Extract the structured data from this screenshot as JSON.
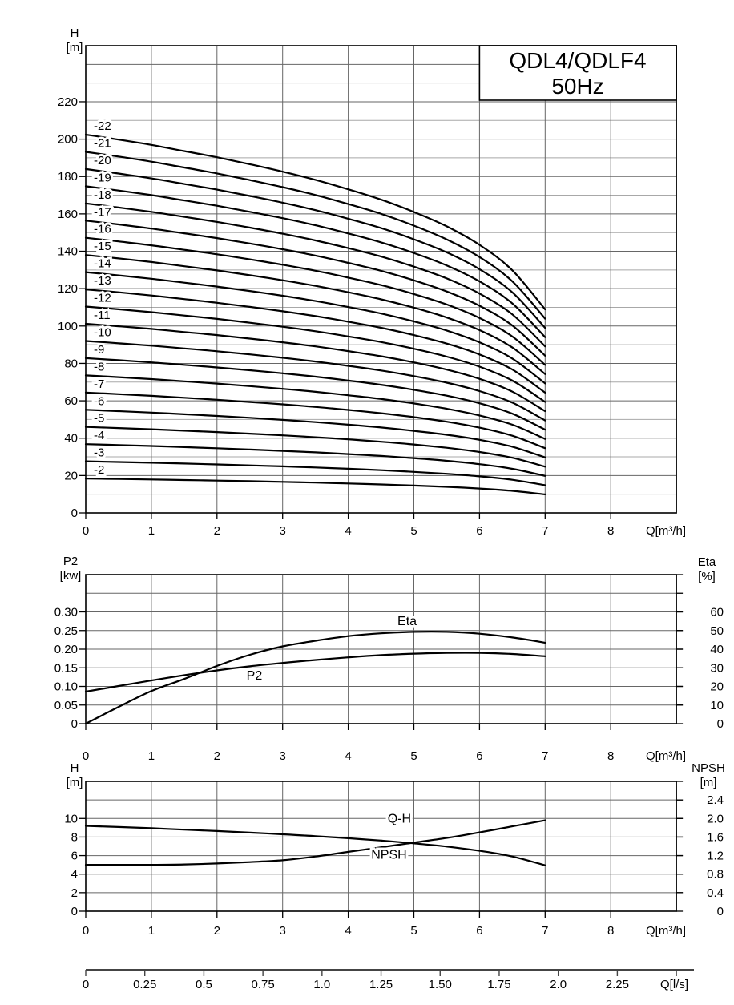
{
  "title": {
    "line1": "QDL4/QDLF4",
    "line2": "50Hz"
  },
  "labels": {
    "chart1_yname": "H",
    "chart1_yunit": "[m]",
    "chart1_xlabel": "Q[m³/h]",
    "chart2_lname": "P2",
    "chart2_lunit": "[kw]",
    "chart2_rname": "Eta",
    "chart2_runit": "[%]",
    "chart2_xlabel": "Q[m³/h]",
    "chart3_lname": "H",
    "chart3_lunit": "[m]",
    "chart3_rname": "NPSH",
    "chart3_runit": "[m]",
    "chart3_xlabel": "Q[m³/h]",
    "flow_axis_label": "Q[l/s]"
  },
  "colors": {
    "curve": "#000000",
    "frame": "#000000",
    "grid_major": "#666666",
    "grid_minor": "#a8a8a8",
    "flow_axis": "#444444",
    "background": "#ffffff"
  },
  "chart_data": [
    {
      "type": "line",
      "name": "head-curves",
      "title": "QDL4/QDLF4 50Hz",
      "xlabel": "Q[m³/h]",
      "ylabel": "H [m]",
      "xlim": [
        0,
        9
      ],
      "ylim": [
        0,
        250
      ],
      "grid": true,
      "x_tick_values": [
        0,
        1,
        2,
        3,
        4,
        5,
        6,
        7,
        8
      ],
      "x_tick_labels": [
        "0",
        "1",
        "2",
        "3",
        "4",
        "5",
        "6",
        "7",
        "8"
      ],
      "y_tick_values": [
        0,
        20,
        40,
        60,
        80,
        100,
        120,
        140,
        160,
        180,
        200,
        220
      ],
      "y_tick_labels": [
        "0",
        "20",
        "40",
        "60",
        "80",
        "100",
        "120",
        "140",
        "160",
        "180",
        "200",
        "220"
      ],
      "y_grid_step": 10,
      "x": [
        0,
        0.5,
        1,
        1.5,
        2,
        2.5,
        3,
        3.5,
        4,
        4.5,
        5,
        5.5,
        6,
        6.5,
        7
      ],
      "base_h_per_stage": [
        9.2,
        9.08,
        8.95,
        8.8,
        8.65,
        8.48,
        8.3,
        8.1,
        7.87,
        7.62,
        7.32,
        6.97,
        6.52,
        5.9,
        4.95
      ],
      "series_rule": "H(Q) = stage x base_h_per_stage(Q)",
      "series": [
        {
          "name": "-2",
          "stage": 2
        },
        {
          "name": "-3",
          "stage": 3
        },
        {
          "name": "-4",
          "stage": 4
        },
        {
          "name": "-5",
          "stage": 5
        },
        {
          "name": "-6",
          "stage": 6
        },
        {
          "name": "-7",
          "stage": 7
        },
        {
          "name": "-8",
          "stage": 8
        },
        {
          "name": "-9",
          "stage": 9
        },
        {
          "name": "-10",
          "stage": 10
        },
        {
          "name": "-11",
          "stage": 11
        },
        {
          "name": "-12",
          "stage": 12
        },
        {
          "name": "-13",
          "stage": 13
        },
        {
          "name": "-14",
          "stage": 14
        },
        {
          "name": "-15",
          "stage": 15
        },
        {
          "name": "-16",
          "stage": 16
        },
        {
          "name": "-17",
          "stage": 17
        },
        {
          "name": "-18",
          "stage": 18
        },
        {
          "name": "-19",
          "stage": 19
        },
        {
          "name": "-20",
          "stage": 20
        },
        {
          "name": "-21",
          "stage": 21
        },
        {
          "name": "-22",
          "stage": 22
        }
      ]
    },
    {
      "type": "line",
      "name": "power-efficiency",
      "xlabel": "Q[m³/h]",
      "xlim": [
        0,
        9
      ],
      "x_tick_values": [
        0,
        1,
        2,
        3,
        4,
        5,
        6,
        7,
        8
      ],
      "x_tick_labels": [
        "0",
        "1",
        "2",
        "3",
        "4",
        "5",
        "6",
        "7",
        "8"
      ],
      "left_axis": {
        "name": "P2",
        "unit": "[kw]",
        "lim": [
          0,
          0.4
        ],
        "grid_step": 0.05,
        "tick_values": [
          0,
          0.05,
          0.1,
          0.15,
          0.2,
          0.25,
          0.3
        ],
        "tick_labels": [
          "0",
          "0.05",
          "0.10",
          "0.15",
          "0.20",
          "0.25",
          "0.30"
        ]
      },
      "right_axis": {
        "name": "Eta",
        "unit": "[%]",
        "lim": [
          0,
          80
        ],
        "tick_values": [
          0,
          10,
          20,
          30,
          40,
          50,
          60
        ],
        "tick_labels": [
          "0",
          "10",
          "20",
          "30",
          "40",
          "50",
          "60"
        ]
      },
      "x": [
        0,
        0.5,
        1,
        1.5,
        2,
        2.5,
        3,
        3.5,
        4,
        4.5,
        5,
        5.5,
        6,
        6.5,
        7
      ],
      "series": [
        {
          "name": "P2",
          "axis": "left",
          "values": [
            0.086,
            0.101,
            0.116,
            0.13,
            0.143,
            0.154,
            0.163,
            0.171,
            0.178,
            0.184,
            0.188,
            0.19,
            0.19,
            0.187,
            0.181
          ]
        },
        {
          "name": "Eta",
          "axis": "right",
          "values": [
            0,
            9,
            17.5,
            24,
            31,
            37,
            41.5,
            44.5,
            47,
            48.5,
            49.3,
            49.3,
            48.3,
            46.3,
            43.5
          ]
        }
      ],
      "annotations": [
        {
          "text": "P2",
          "x": 2.45,
          "y": 0.118,
          "axis": "left"
        },
        {
          "text": "Eta",
          "x": 4.75,
          "y": 0.264,
          "axis": "left"
        }
      ]
    },
    {
      "type": "line",
      "name": "qh-npsh",
      "xlabel": "Q[m³/h]",
      "xlim": [
        0,
        9
      ],
      "x_tick_values": [
        0,
        1,
        2,
        3,
        4,
        5,
        6,
        7,
        8
      ],
      "x_tick_labels": [
        "0",
        "1",
        "2",
        "3",
        "4",
        "5",
        "6",
        "7",
        "8"
      ],
      "left_axis": {
        "name": "H",
        "unit": "[m]",
        "lim": [
          0,
          14
        ],
        "grid_step": 2,
        "tick_values": [
          0,
          2,
          4,
          6,
          8,
          10
        ],
        "tick_labels": [
          "0",
          "2",
          "4",
          "6",
          "8",
          "10"
        ]
      },
      "right_axis": {
        "name": "NPSH",
        "unit": "[m]",
        "lim": [
          0,
          2.8
        ],
        "tick_values": [
          0,
          0.4,
          0.8,
          1.2,
          1.6,
          2.0,
          2.4
        ],
        "tick_labels": [
          "0",
          "0.4",
          "0.8",
          "1.2",
          "1.6",
          "2.0",
          "2.4"
        ]
      },
      "x": [
        0,
        0.5,
        1,
        1.5,
        2,
        2.5,
        3,
        3.5,
        4,
        4.5,
        5,
        5.5,
        6,
        6.5,
        7
      ],
      "series": [
        {
          "name": "Q-H",
          "axis": "left",
          "values": [
            9.2,
            9.08,
            8.95,
            8.8,
            8.65,
            8.48,
            8.3,
            8.1,
            7.87,
            7.62,
            7.32,
            6.97,
            6.52,
            5.9,
            4.95
          ]
        },
        {
          "name": "NPSH",
          "axis": "right",
          "values": [
            1.0,
            1.0,
            1.0,
            1.01,
            1.03,
            1.06,
            1.1,
            1.18,
            1.28,
            1.38,
            1.48,
            1.58,
            1.7,
            1.83,
            1.96
          ]
        }
      ],
      "annotations": [
        {
          "text": "Q-H",
          "x": 4.6,
          "y": 9.55,
          "axis": "left"
        },
        {
          "text": "NPSH",
          "x": 4.35,
          "y": 5.65,
          "axis": "left"
        }
      ]
    }
  ],
  "flow_axis": {
    "label": "Q[l/s]",
    "unit_per_m3h": 3.6,
    "tick_values": [
      0,
      0.25,
      0.5,
      0.75,
      1.0,
      1.25,
      1.5,
      1.75,
      2.0,
      2.25
    ],
    "tick_labels": [
      "0",
      "0.25",
      "0.5",
      "0.75",
      "1.0",
      "1.25",
      "1.50",
      "1.75",
      "2.0",
      "2.25"
    ],
    "extra_unlabeled_tick": 2.5
  }
}
